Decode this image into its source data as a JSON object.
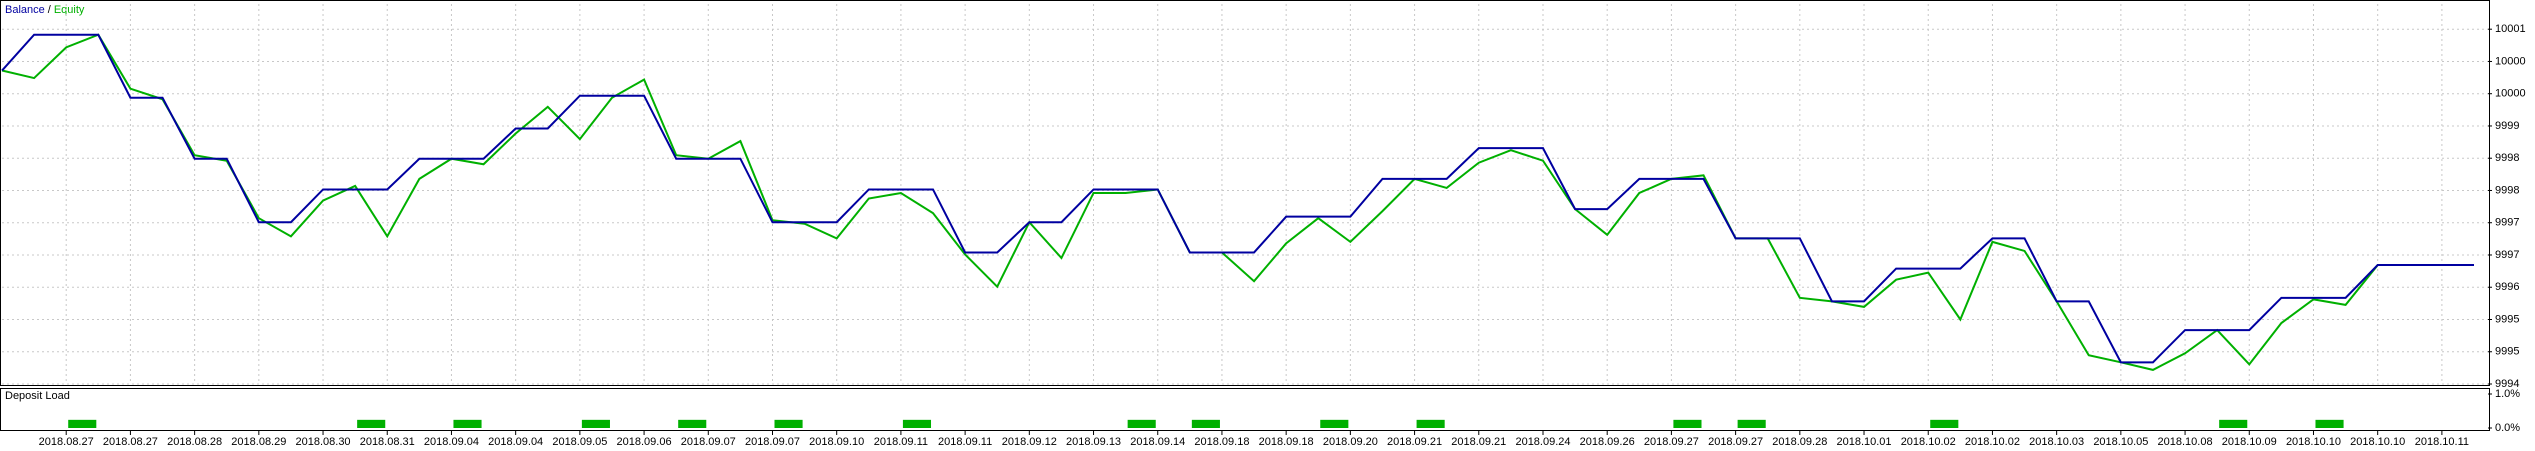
{
  "chart_data": [
    {
      "type": "line",
      "legend_separator": "/",
      "categories": [
        null,
        null,
        "2018.08.27",
        null,
        "2018.08.27",
        null,
        "2018.08.28",
        null,
        "2018.08.29",
        null,
        "2018.08.30",
        null,
        "2018.08.31",
        null,
        "2018.09.04",
        null,
        "2018.09.04",
        null,
        "2018.09.05",
        null,
        "2018.09.06",
        null,
        "2018.09.07",
        null,
        "2018.09.07",
        null,
        "2018.09.10",
        null,
        "2018.09.11",
        null,
        "2018.09.11",
        null,
        "2018.09.12",
        null,
        "2018.09.13",
        null,
        "2018.09.14",
        null,
        "2018.09.18",
        null,
        "2018.09.18",
        null,
        "2018.09.20",
        null,
        "2018.09.21",
        null,
        "2018.09.21",
        null,
        "2018.09.24",
        null,
        "2018.09.26",
        null,
        "2018.09.27",
        null,
        "2018.09.27",
        null,
        "2018.09.28",
        null,
        "2018.10.01",
        null,
        "2018.10.02",
        null,
        "2018.10.02",
        null,
        "2018.10.03",
        null,
        "2018.10.05",
        null,
        "2018.10.08",
        null,
        "2018.10.09",
        null,
        "2018.10.10",
        null,
        "2018.10.10",
        null,
        "2018.10.11",
        null
      ],
      "series": [
        {
          "name": "Balance",
          "color": "#0000a0",
          "values": [
            10000.18,
            10000.89,
            10000.89,
            10000.89,
            9999.64,
            9999.64,
            9998.43,
            9998.43,
            9997.17,
            9997.17,
            9997.82,
            9997.82,
            9997.82,
            9998.43,
            9998.43,
            9998.43,
            9999.03,
            9999.03,
            9999.68,
            9999.68,
            9999.68,
            9998.43,
            9998.43,
            9998.43,
            9997.17,
            9997.17,
            9997.17,
            9997.82,
            9997.82,
            9997.82,
            9996.57,
            9996.57,
            9997.17,
            9997.17,
            9997.82,
            9997.82,
            9997.82,
            9996.57,
            9996.57,
            9996.57,
            9997.28,
            9997.28,
            9997.28,
            9998.03,
            9998.03,
            9998.03,
            9998.64,
            9998.64,
            9998.64,
            9997.43,
            9997.43,
            9998.03,
            9998.03,
            9998.03,
            9996.85,
            9996.85,
            9996.85,
            9995.6,
            9995.6,
            9996.25,
            9996.25,
            9996.25,
            9996.85,
            9996.85,
            9995.6,
            9995.6,
            9994.39,
            9994.39,
            9995.03,
            9995.03,
            9995.03,
            9995.67,
            9995.67,
            9995.67,
            9996.32,
            9996.32,
            9996.32,
            9996.32
          ]
        },
        {
          "name": "Equity",
          "color": "#00b000",
          "values": [
            10000.18,
            10000.03,
            10000.64,
            10000.89,
            9999.82,
            9999.61,
            9998.5,
            9998.39,
            9997.25,
            9996.89,
            9997.6,
            9997.89,
            9996.89,
            9998.03,
            9998.43,
            9998.32,
            9998.93,
            9999.46,
            9998.82,
            9999.64,
            10000.0,
            9998.5,
            9998.43,
            9998.78,
            9997.21,
            9997.14,
            9996.85,
            9997.64,
            9997.75,
            9997.35,
            9996.53,
            9995.89,
            9997.17,
            9996.46,
            9997.75,
            9997.75,
            9997.82,
            9996.57,
            9996.57,
            9996.0,
            9996.75,
            9997.25,
            9996.78,
            9997.39,
            9998.03,
            9997.85,
            9998.35,
            9998.6,
            9998.39,
            9997.43,
            9996.92,
            9997.75,
            9998.03,
            9998.1,
            9996.85,
            9996.85,
            9995.67,
            9995.6,
            9995.49,
            9996.03,
            9996.17,
            9995.24,
            9996.78,
            9996.6,
            9995.6,
            9994.53,
            9994.39,
            9994.24,
            9994.57,
            9995.03,
            9994.35,
            9995.17,
            9995.64,
            9995.53,
            9996.32,
            9996.32,
            9996.32,
            9996.32
          ]
        }
      ],
      "ylim": [
        9993.96,
        10001.5
      ],
      "yticks": [
        {
          "value": 10001.0,
          "label": "10001"
        },
        {
          "value": 10000.36,
          "label": "10000"
        },
        {
          "value": 9999.72,
          "label": "10000"
        },
        {
          "value": 9999.08,
          "label": "9999"
        },
        {
          "value": 9998.44,
          "label": "9998"
        },
        {
          "value": 9997.8,
          "label": "9998"
        },
        {
          "value": 9997.16,
          "label": "9997"
        },
        {
          "value": 9996.52,
          "label": "9997"
        },
        {
          "value": 9995.88,
          "label": "9996"
        },
        {
          "value": 9995.24,
          "label": "9995"
        },
        {
          "value": 9994.6,
          "label": "9995"
        },
        {
          "value": 9993.96,
          "label": "9994"
        }
      ],
      "grid": true
    },
    {
      "type": "bar",
      "title": "Deposit Load",
      "color": "#00b000",
      "values": [
        0,
        0,
        0.24,
        0,
        0,
        0,
        0,
        0,
        0,
        0,
        0,
        0.24,
        0,
        0,
        0.24,
        0,
        0,
        0,
        0.24,
        0,
        0,
        0.24,
        0,
        0,
        0.24,
        0,
        0,
        0,
        0.24,
        0,
        0,
        0,
        0,
        0,
        0,
        0.24,
        0,
        0.24,
        0,
        0,
        0,
        0.24,
        0,
        0,
        0.24,
        0,
        0,
        0,
        0,
        0,
        0,
        0,
        0.24,
        0,
        0.24,
        0,
        0,
        0,
        0,
        0,
        0.24,
        0,
        0,
        0,
        0,
        0,
        0,
        0,
        0,
        0.24,
        0,
        0,
        0.24,
        0,
        0,
        0,
        0,
        0
      ],
      "ylim": [
        0,
        1
      ],
      "yticks": [
        {
          "value": 1,
          "label": "1.0%"
        },
        {
          "value": 0,
          "label": "0.0%"
        }
      ]
    }
  ]
}
